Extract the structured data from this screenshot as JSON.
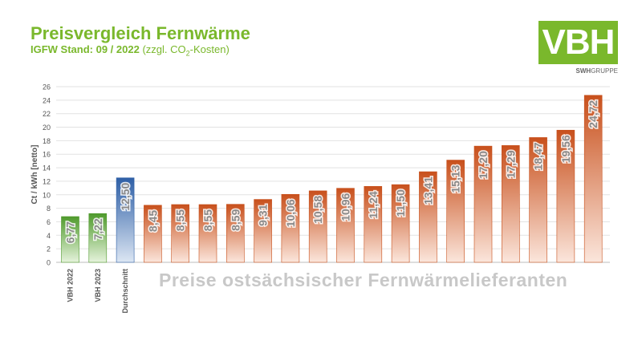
{
  "header": {
    "title": "Preisvergleich Fernwärme",
    "subtitle_bold": "IGFW Stand: 09 / 2022",
    "subtitle_note_prefix": "(zzgl. CO",
    "subtitle_note_sub": "2",
    "subtitle_note_suffix": "-Kosten)"
  },
  "logo": {
    "text": "VBH",
    "sub_bold": "SWH",
    "sub_rest": "GRUPPE",
    "color": "#7ab82c"
  },
  "watermark": "Preise ostsächsischer Fernwärmelieferanten",
  "chart_data": {
    "type": "bar",
    "ylabel": "Ct / kWh [netto]",
    "ylim": [
      0,
      26
    ],
    "yticks": [
      0,
      2,
      4,
      6,
      8,
      10,
      12,
      14,
      16,
      18,
      20,
      22,
      24,
      26
    ],
    "grid": true,
    "categories": [
      "VBH 2022",
      "VBH 2023",
      "Durchschnitt",
      "",
      "",
      "",
      "",
      "",
      "",
      "",
      "",
      "",
      "",
      "",
      "",
      "",
      "",
      "",
      "",
      ""
    ],
    "values": [
      6.77,
      7.22,
      12.5,
      8.45,
      8.55,
      8.55,
      8.59,
      9.31,
      10.06,
      10.58,
      10.96,
      11.24,
      11.5,
      13.41,
      15.13,
      17.2,
      17.29,
      18.47,
      19.56,
      24.72
    ],
    "value_labels": [
      "6,77",
      "7,22",
      "12,50",
      "8,45",
      "8,55",
      "8,55",
      "8,59",
      "9,31",
      "10,06",
      "10,58",
      "10,96",
      "11,24",
      "11,50",
      "13,41",
      "15,13",
      "17,20",
      "17,29",
      "18,47",
      "19,56",
      "24,72"
    ],
    "bar_groups": [
      "vbh",
      "vbh",
      "avg",
      "other",
      "other",
      "other",
      "other",
      "other",
      "other",
      "other",
      "other",
      "other",
      "other",
      "other",
      "other",
      "other",
      "other",
      "other",
      "other",
      "other"
    ],
    "colors": {
      "vbh_top": "#4f9a2c",
      "vbh_bottom": "#e6f3dc",
      "avg_top": "#2e5fa6",
      "avg_bottom": "#dce6f3",
      "other_top": "#c8501c",
      "other_bottom": "#fbe6dc"
    }
  }
}
